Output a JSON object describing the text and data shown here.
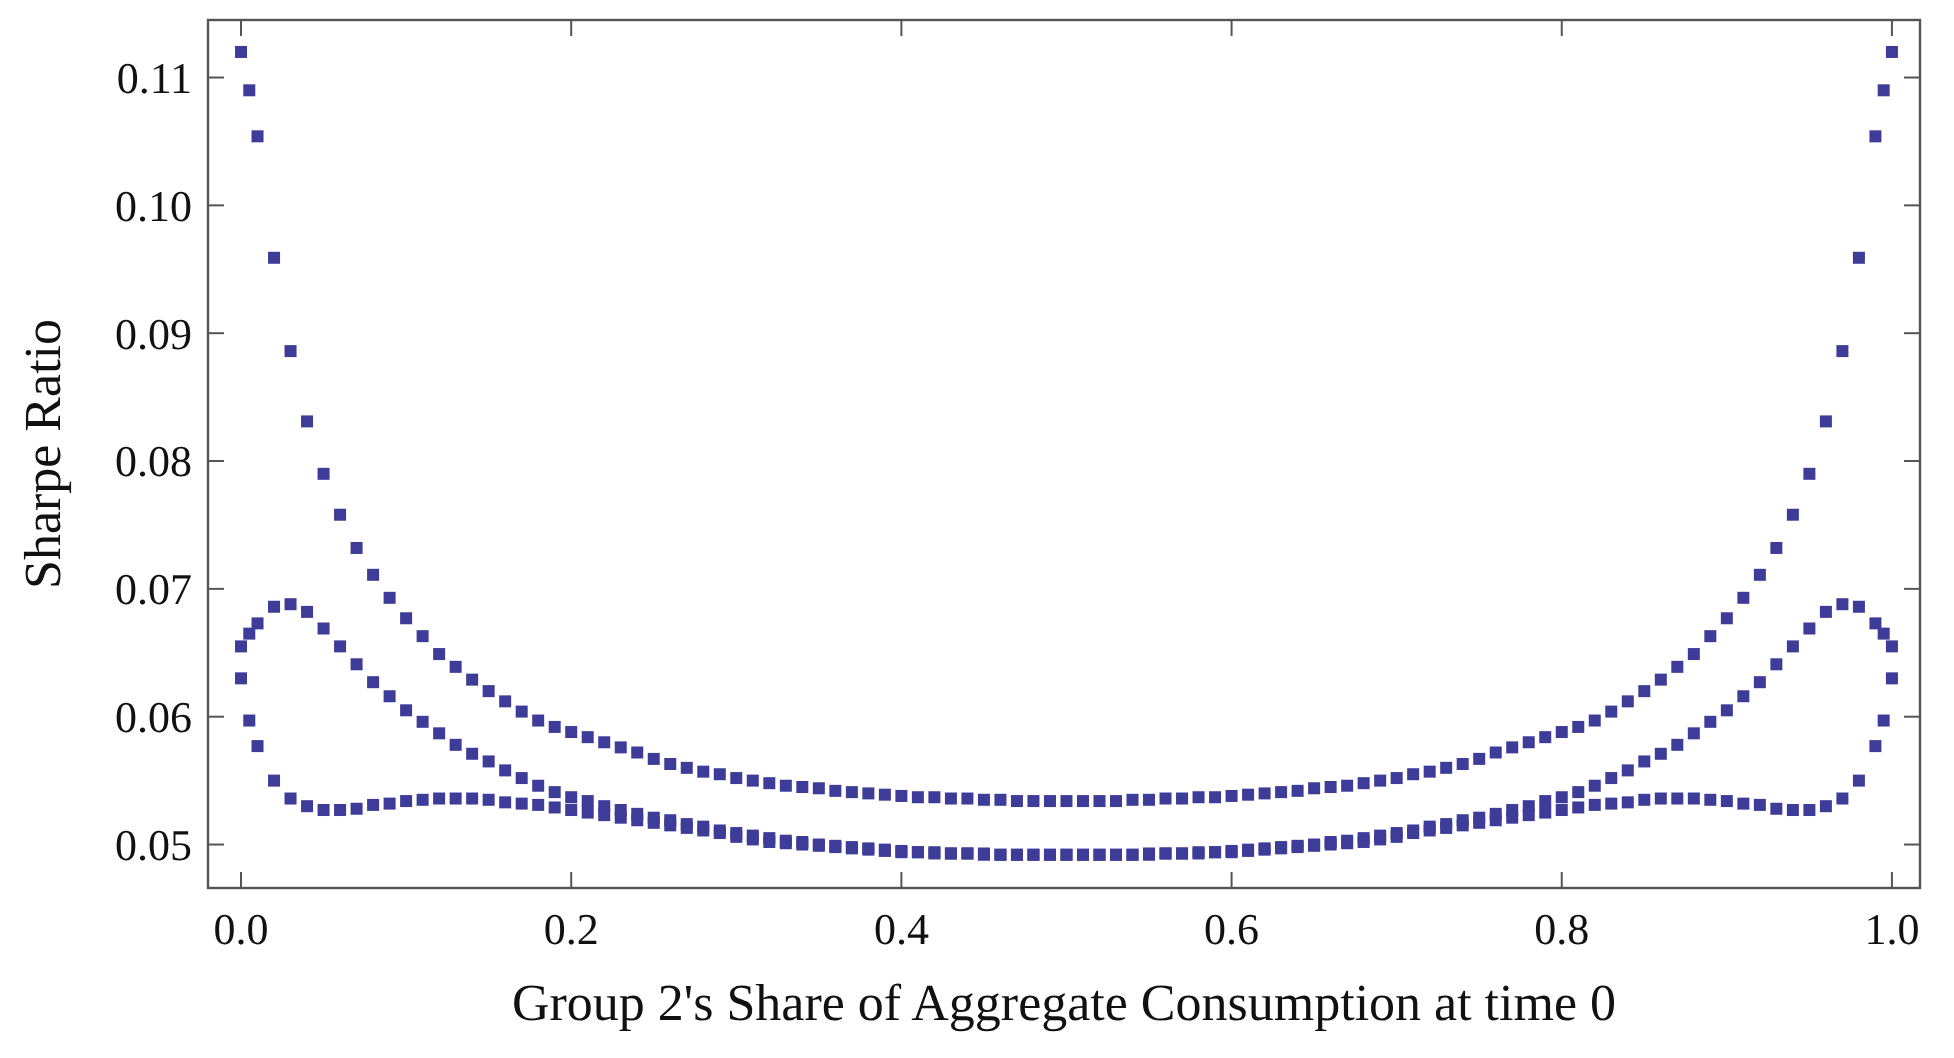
{
  "chart_data": {
    "type": "scatter",
    "xlabel": "Group 2's Share of Aggregate Consumption at time 0",
    "ylabel": "Sharpe Ratio",
    "marker": "square",
    "xlim": [
      -0.02,
      1.017
    ],
    "ylim": [
      0.0466,
      0.1145
    ],
    "xticks": [
      {
        "value": 0,
        "label": "0.0"
      },
      0.2,
      0.4,
      0.6,
      0.8,
      {
        "value": 1,
        "label": "1.0"
      }
    ],
    "yticks": [
      0.05,
      0.06,
      0.07,
      0.08,
      0.09,
      {
        "value": 0.1,
        "label": "0.10"
      },
      0.11
    ],
    "x": [
      0,
      0.005,
      0.01,
      0.02,
      0.03,
      0.04,
      0.05,
      0.06,
      0.07,
      0.08,
      0.09,
      0.1,
      0.11,
      0.12,
      0.13,
      0.14,
      0.15,
      0.16,
      0.17,
      0.18,
      0.19,
      0.2,
      0.21,
      0.22,
      0.23,
      0.24,
      0.25,
      0.26,
      0.27,
      0.28,
      0.29,
      0.3,
      0.31,
      0.32,
      0.33,
      0.34,
      0.35,
      0.36,
      0.37,
      0.38,
      0.39,
      0.4,
      0.41,
      0.42,
      0.43,
      0.44,
      0.45,
      0.46,
      0.47,
      0.48,
      0.49,
      0.5,
      0.51,
      0.52,
      0.53,
      0.54,
      0.55,
      0.56,
      0.57,
      0.58,
      0.59,
      0.6,
      0.61,
      0.62,
      0.63,
      0.64,
      0.65,
      0.66,
      0.67,
      0.68,
      0.69,
      0.7,
      0.71,
      0.72,
      0.73,
      0.74,
      0.75,
      0.76,
      0.77,
      0.78,
      0.79,
      0.8,
      0.81,
      0.82,
      0.83,
      0.84,
      0.85,
      0.86,
      0.87,
      0.88,
      0.89,
      0.9,
      0.91,
      0.92,
      0.93,
      0.94,
      0.95,
      0.96,
      0.97,
      0.98,
      0.99,
      0.995,
      1
    ],
    "series": [
      {
        "color": "#3d3d99",
        "values": [
          0.112,
          0.109,
          0.1054,
          0.0959,
          0.0886,
          0.0831,
          0.079,
          0.0758,
          0.0732,
          0.0711,
          0.0693,
          0.0677,
          0.0663,
          0.0649,
          0.0639,
          0.0629,
          0.062,
          0.0612,
          0.0604,
          0.0597,
          0.0592,
          0.0588,
          0.0584,
          0.058,
          0.0576,
          0.0572,
          0.0567,
          0.0563,
          0.056,
          0.0557,
          0.0555,
          0.0552,
          0.055,
          0.0548,
          0.0546,
          0.0545,
          0.0544,
          0.0542,
          0.0541,
          0.054,
          0.0539,
          0.0538,
          0.0537,
          0.0537,
          0.0536,
          0.0536,
          0.0535,
          0.0535,
          0.0534,
          0.0534,
          0.0534,
          0.0534,
          0.0534,
          0.0534,
          0.0534,
          0.0535,
          0.0535,
          0.0536,
          0.0536,
          0.0537,
          0.0537,
          0.0538,
          0.0539,
          0.054,
          0.0541,
          0.0542,
          0.0544,
          0.0545,
          0.0546,
          0.0548,
          0.055,
          0.0552,
          0.0555,
          0.0557,
          0.056,
          0.0563,
          0.0567,
          0.0572,
          0.0576,
          0.058,
          0.0584,
          0.0588,
          0.0592,
          0.0597,
          0.0604,
          0.0612,
          0.062,
          0.0629,
          0.0639,
          0.0649,
          0.0663,
          0.0677,
          0.0693,
          0.0711,
          0.0732,
          0.0758,
          0.079,
          0.0831,
          0.0886,
          0.0959,
          0.1054,
          0.109,
          0.112
        ]
      },
      {
        "color": "#3d3d99",
        "values": [
          0.0655,
          0.0665,
          0.0673,
          0.0686,
          0.0688,
          0.0682,
          0.0669,
          0.0655,
          0.0641,
          0.0627,
          0.0616,
          0.0605,
          0.0596,
          0.0587,
          0.0578,
          0.0571,
          0.0565,
          0.0558,
          0.0552,
          0.0546,
          0.0541,
          0.0537,
          0.0534,
          0.053,
          0.0527,
          0.0524,
          0.0521,
          0.0519,
          0.0516,
          0.0514,
          0.0511,
          0.0509,
          0.0507,
          0.0505,
          0.0503,
          0.0502,
          0.05,
          0.0499,
          0.0498,
          0.0497,
          0.0496,
          0.0495,
          0.0494,
          0.0494,
          0.0493,
          0.0493,
          0.0493,
          0.0492,
          0.0492,
          0.0492,
          0.0492,
          0.0492,
          0.0492,
          0.0492,
          0.0492,
          0.0492,
          0.0493,
          0.0493,
          0.0493,
          0.0494,
          0.0494,
          0.0495,
          0.0496,
          0.0497,
          0.0498,
          0.0499,
          0.05,
          0.0502,
          0.0503,
          0.0505,
          0.0507,
          0.0509,
          0.0511,
          0.0514,
          0.0516,
          0.0519,
          0.0521,
          0.0524,
          0.0527,
          0.053,
          0.0534,
          0.0537,
          0.0541,
          0.0546,
          0.0552,
          0.0558,
          0.0565,
          0.0571,
          0.0578,
          0.0587,
          0.0596,
          0.0605,
          0.0616,
          0.0627,
          0.0641,
          0.0655,
          0.0669,
          0.0682,
          0.0688,
          0.0686,
          0.0673,
          0.0665,
          0.0655
        ]
      },
      {
        "color": "#3d3d99",
        "values": [
          0.063,
          0.0597,
          0.0577,
          0.055,
          0.0536,
          0.053,
          0.0527,
          0.0527,
          0.0528,
          0.0531,
          0.0532,
          0.0534,
          0.0535,
          0.0536,
          0.0536,
          0.0536,
          0.0535,
          0.0533,
          0.0532,
          0.0531,
          0.0529,
          0.0527,
          0.0525,
          0.0523,
          0.0521,
          0.0519,
          0.0517,
          0.0515,
          0.0513,
          0.0511,
          0.0509,
          0.0506,
          0.0504,
          0.0502,
          0.0501,
          0.05,
          0.0499,
          0.0498,
          0.0497,
          0.0496,
          0.0495,
          0.0494,
          0.0494,
          0.0493,
          0.0493,
          0.0493,
          0.0492,
          0.0492,
          0.0492,
          0.0492,
          0.0492,
          0.0492,
          0.0492,
          0.0492,
          0.0492,
          0.0492,
          0.0492,
          0.0493,
          0.0493,
          0.0493,
          0.0494,
          0.0494,
          0.0495,
          0.0496,
          0.0497,
          0.0498,
          0.0499,
          0.05,
          0.0501,
          0.0502,
          0.0504,
          0.0506,
          0.0509,
          0.0511,
          0.0513,
          0.0515,
          0.0517,
          0.0519,
          0.0521,
          0.0523,
          0.0525,
          0.0527,
          0.0529,
          0.0531,
          0.0532,
          0.0533,
          0.0535,
          0.0536,
          0.0536,
          0.0536,
          0.0535,
          0.0534,
          0.0532,
          0.0531,
          0.0528,
          0.0527,
          0.0527,
          0.053,
          0.0536,
          0.055,
          0.0577,
          0.0597,
          0.063
        ]
      }
    ]
  }
}
